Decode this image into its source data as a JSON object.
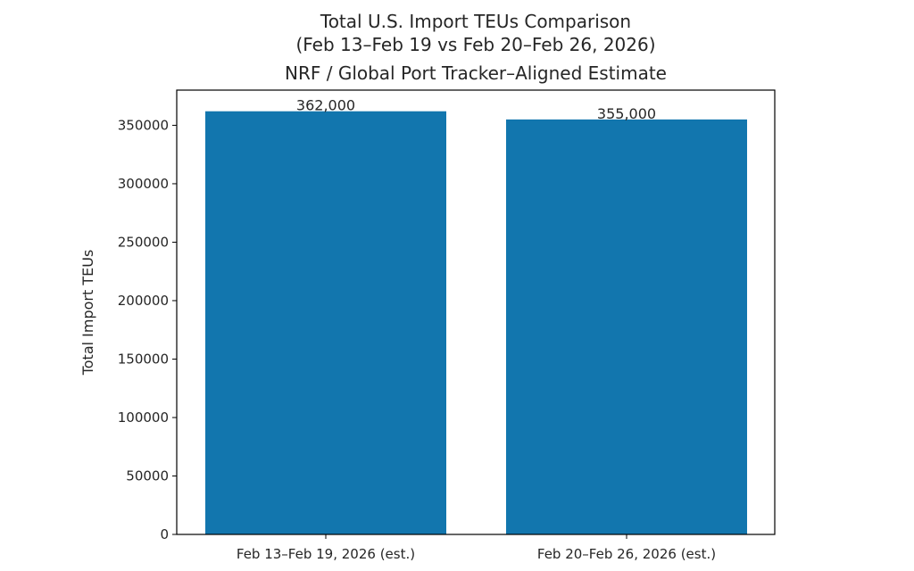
{
  "colors": {
    "bar": "#1276ae",
    "axis": "#000000",
    "text": "#262626",
    "background": "#ffffff"
  },
  "chart_data": {
    "type": "bar",
    "title_lines": [
      "Total U.S. Import TEUs Comparison",
      "(Feb 13–Feb 19 vs Feb 20–Feb 26, 2026)",
      "NRF / Global Port Tracker–Aligned Estimate"
    ],
    "xlabel": "",
    "ylabel": "Total Import TEUs",
    "categories": [
      "Feb 13–Feb 19, 2026 (est.)",
      "Feb 20–Feb 26, 2026 (est.)"
    ],
    "values": [
      362000,
      355000
    ],
    "data_labels": [
      "362,000",
      "355,000"
    ],
    "ylim": [
      0,
      380100
    ],
    "yticks": [
      0,
      50000,
      100000,
      150000,
      200000,
      250000,
      300000,
      350000
    ],
    "ytick_labels": [
      "0",
      "50000",
      "100000",
      "150000",
      "200000",
      "250000",
      "300000",
      "350000"
    ],
    "grid": false,
    "legend": "none"
  }
}
